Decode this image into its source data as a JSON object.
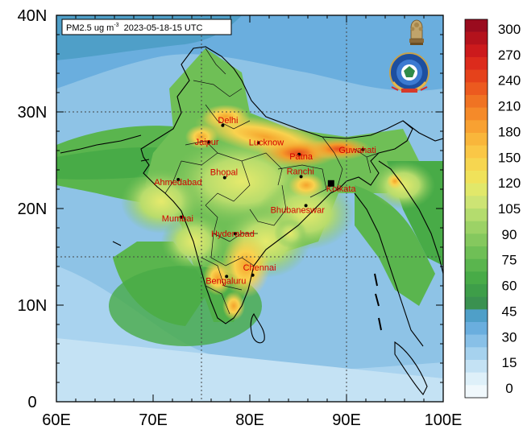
{
  "map": {
    "title_prefix": "PM2.5 ug m",
    "title_sup": "-3",
    "title_date": "2023-05-18-15 UTC",
    "lon_ticks": [
      "60E",
      "70E",
      "80E",
      "90E",
      "100E"
    ],
    "lat_ticks": [
      "40N",
      "30N",
      "20N",
      "10N",
      "0"
    ],
    "extent": {
      "lon": [
        60,
        100
      ],
      "lat": [
        0,
        40
      ]
    },
    "grid_lines": {
      "lon": [
        75,
        90
      ],
      "lat": [
        15,
        30
      ]
    },
    "cities": [
      {
        "name": "Delhi",
        "lon": 77.2,
        "lat": 28.6
      },
      {
        "name": "Jaipur",
        "lon": 75.8,
        "lat": 26.9
      },
      {
        "name": "Lucknow",
        "lon": 80.9,
        "lat": 26.8
      },
      {
        "name": "Patna",
        "lon": 85.1,
        "lat": 25.6
      },
      {
        "name": "Guwahati",
        "lon": 91.7,
        "lat": 26.1
      },
      {
        "name": "Ahmedabad",
        "lon": 72.6,
        "lat": 23.0
      },
      {
        "name": "Bhopal",
        "lon": 77.4,
        "lat": 23.2
      },
      {
        "name": "Ranchi",
        "lon": 85.3,
        "lat": 23.3
      },
      {
        "name": "Kolkata",
        "lon": 88.4,
        "lat": 22.6
      },
      {
        "name": "Bhubaneswar",
        "lon": 85.8,
        "lat": 20.3
      },
      {
        "name": "Mumbai",
        "lon": 72.9,
        "lat": 19.1
      },
      {
        "name": "Hyderabad",
        "lon": 78.5,
        "lat": 17.4
      },
      {
        "name": "Chennai",
        "lon": 80.3,
        "lat": 13.1
      },
      {
        "name": "Bengaluru",
        "lon": 77.6,
        "lat": 12.97
      }
    ]
  },
  "colorbar": {
    "labels": [
      "300",
      "270",
      "240",
      "210",
      "180",
      "150",
      "120",
      "105",
      "90",
      "75",
      "60",
      "45",
      "30",
      "15",
      "0"
    ],
    "colors": [
      "#9a0b1e",
      "#b4121c",
      "#cc1a1c",
      "#dc2b1c",
      "#e5421b",
      "#ec5a1f",
      "#f07323",
      "#f58a29",
      "#f8a132",
      "#f9b63b",
      "#fac746",
      "#f6d650",
      "#f0e25a",
      "#e1e86a",
      "#cde474",
      "#b4dc6e",
      "#9cd266",
      "#85c85e",
      "#6fbf56",
      "#5ab54e",
      "#48ab47",
      "#3e9e49",
      "#3a9150",
      "#4f9fc8",
      "#6aaede",
      "#88c0e7",
      "#a6d2ee",
      "#c4e2f4",
      "#def0f9",
      "#f0f8fc"
    ]
  },
  "emblems": {
    "left": "national-emblem",
    "right": "imd-logo"
  }
}
